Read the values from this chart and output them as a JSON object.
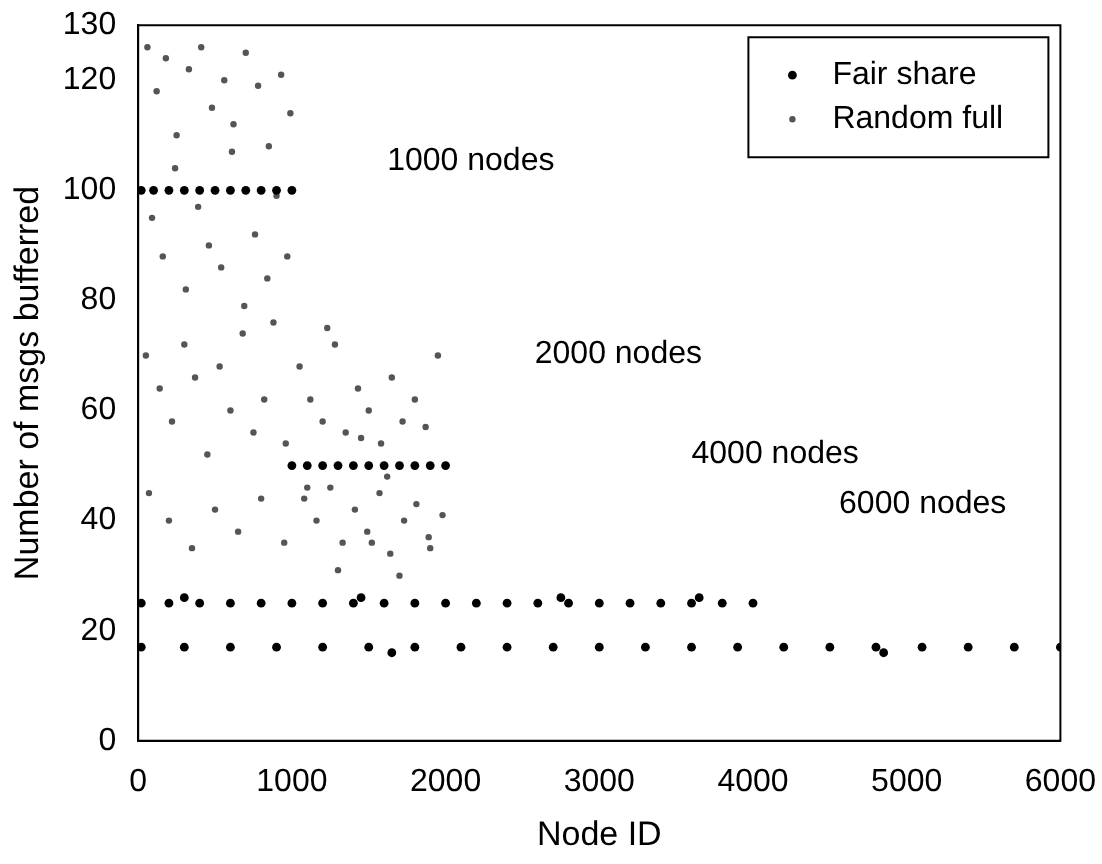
{
  "chart_data": {
    "type": "scatter",
    "xlabel": "Node ID",
    "ylabel": "Number of msgs bufferred",
    "xlim": [
      0,
      6000
    ],
    "ylim": [
      0,
      130
    ],
    "xticks": [
      0,
      1000,
      2000,
      3000,
      4000,
      5000,
      6000
    ],
    "yticks": [
      0,
      20,
      40,
      60,
      80,
      100,
      120,
      130
    ],
    "grid": false,
    "legend": "top right",
    "marker": "circle",
    "annotations": [
      "1000 nodes",
      "2000 nodes",
      "4000 nodes",
      "6000 nodes"
    ],
    "series": [
      {
        "name": "Fair share",
        "color": "#000000",
        "x": [
          20,
          100,
          200,
          300,
          400,
          500,
          600,
          700,
          800,
          900,
          1000,
          1000,
          1100,
          1200,
          1300,
          1400,
          1500,
          1600,
          1700,
          1800,
          1900,
          2000,
          20,
          200,
          400,
          600,
          800,
          1000,
          1200,
          1400,
          1600,
          1800,
          2000,
          2200,
          2400,
          2600,
          2800,
          3000,
          3200,
          3400,
          3600,
          3800,
          4000,
          300,
          1450,
          2750,
          3650,
          20,
          300,
          600,
          900,
          1200,
          1500,
          1800,
          2100,
          2400,
          2700,
          3000,
          3300,
          3600,
          3900,
          4200,
          4500,
          4800,
          5100,
          5400,
          5700,
          6000,
          1650,
          4850
        ],
        "values": [
          100,
          100,
          100,
          100,
          100,
          100,
          100,
          100,
          100,
          100,
          100,
          50,
          50,
          50,
          50,
          50,
          50,
          50,
          50,
          50,
          50,
          50,
          25,
          25,
          25,
          25,
          25,
          25,
          25,
          25,
          25,
          25,
          25,
          25,
          25,
          25,
          25,
          25,
          25,
          25,
          25,
          25,
          25,
          26,
          26,
          26,
          26,
          17,
          17,
          17,
          17,
          17,
          17,
          17,
          17,
          17,
          17,
          17,
          17,
          17,
          17,
          17,
          17,
          17,
          17,
          17,
          17,
          17,
          16,
          16
        ]
      },
      {
        "name": "Random full",
        "color": "#555555",
        "x": [
          60,
          120,
          180,
          250,
          330,
          410,
          480,
          560,
          620,
          700,
          780,
          850,
          930,
          990,
          90,
          160,
          240,
          310,
          390,
          460,
          540,
          610,
          690,
          760,
          840,
          900,
          970,
          50,
          140,
          220,
          300,
          370,
          450,
          530,
          600,
          680,
          750,
          820,
          880,
          960,
          70,
          200,
          350,
          500,
          650,
          800,
          950,
          1050,
          1120,
          1200,
          1280,
          1350,
          1430,
          1500,
          1580,
          1650,
          1720,
          1800,
          1870,
          1950,
          1080,
          1160,
          1250,
          1330,
          1410,
          1490,
          1570,
          1640,
          1730,
          1810,
          1890,
          1980,
          1100,
          1300,
          1520,
          1700,
          1900,
          1230,
          1620,
          1450
        ],
        "values": [
          126,
          118,
          124,
          110,
          122,
          126,
          115,
          120,
          112,
          125,
          119,
          108,
          121,
          114,
          95,
          88,
          104,
          82,
          97,
          90,
          86,
          107,
          79,
          92,
          84,
          99,
          88,
          70,
          64,
          58,
          72,
          66,
          52,
          68,
          60,
          74,
          56,
          62,
          76,
          54,
          45,
          40,
          35,
          42,
          38,
          44,
          36,
          68,
          62,
          58,
          72,
          56,
          64,
          60,
          54,
          66,
          58,
          62,
          57,
          70,
          44,
          40,
          46,
          36,
          42,
          38,
          45,
          34,
          40,
          43,
          37,
          41,
          46,
          31,
          36,
          30,
          35,
          75,
          48,
          55
        ]
      }
    ]
  }
}
